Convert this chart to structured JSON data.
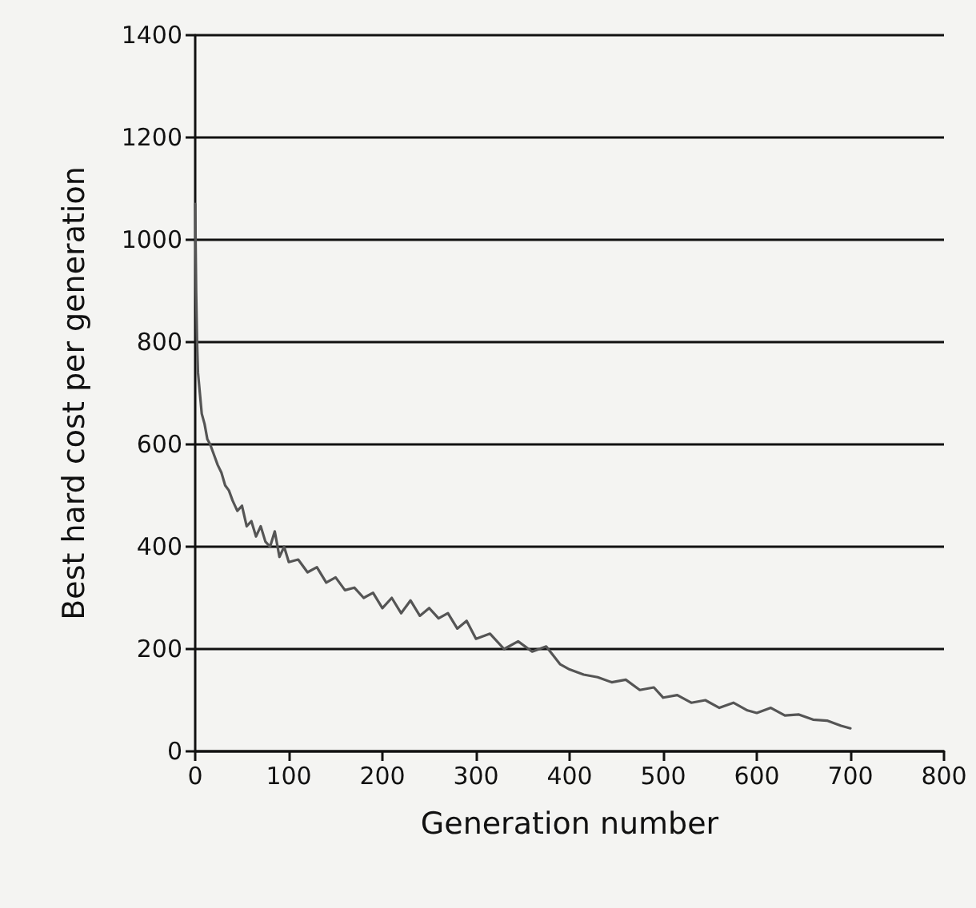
{
  "chart_data": {
    "type": "line",
    "xlabel": "Generation number",
    "ylabel": "Best hard cost per generation",
    "x": [
      0,
      1,
      2,
      3,
      5,
      7,
      10,
      13,
      16,
      20,
      24,
      28,
      32,
      36,
      40,
      45,
      50,
      55,
      60,
      65,
      70,
      75,
      80,
      85,
      90,
      95,
      100,
      110,
      120,
      130,
      140,
      150,
      160,
      170,
      180,
      190,
      200,
      210,
      220,
      230,
      240,
      250,
      260,
      270,
      280,
      290,
      300,
      315,
      330,
      345,
      360,
      375,
      390,
      400,
      415,
      430,
      445,
      460,
      475,
      490,
      500,
      515,
      530,
      545,
      560,
      575,
      590,
      600,
      615,
      630,
      645,
      660,
      675,
      690,
      700
    ],
    "series": [
      {
        "color": "#555555",
        "values": [
          1070,
          900,
          800,
          740,
          700,
          660,
          640,
          610,
          600,
          580,
          560,
          545,
          520,
          510,
          490,
          470,
          480,
          440,
          450,
          420,
          440,
          410,
          400,
          430,
          380,
          400,
          370,
          375,
          350,
          360,
          330,
          340,
          315,
          320,
          300,
          310,
          280,
          300,
          270,
          295,
          265,
          280,
          260,
          270,
          240,
          255,
          220,
          230,
          200,
          215,
          195,
          205,
          170,
          160,
          150,
          145,
          135,
          140,
          120,
          125,
          105,
          110,
          95,
          100,
          85,
          95,
          80,
          75,
          85,
          70,
          72,
          62,
          60,
          50,
          45
        ]
      }
    ],
    "xlim": [
      0,
      800
    ],
    "xticks": [
      0,
      100,
      200,
      300,
      400,
      500,
      600,
      700,
      800
    ],
    "ylim": [
      0,
      1400
    ],
    "yticks": [
      0,
      200,
      400,
      600,
      800,
      1000,
      1200,
      1400
    ],
    "grid": "y",
    "marker": "none",
    "line_style": "solid"
  }
}
